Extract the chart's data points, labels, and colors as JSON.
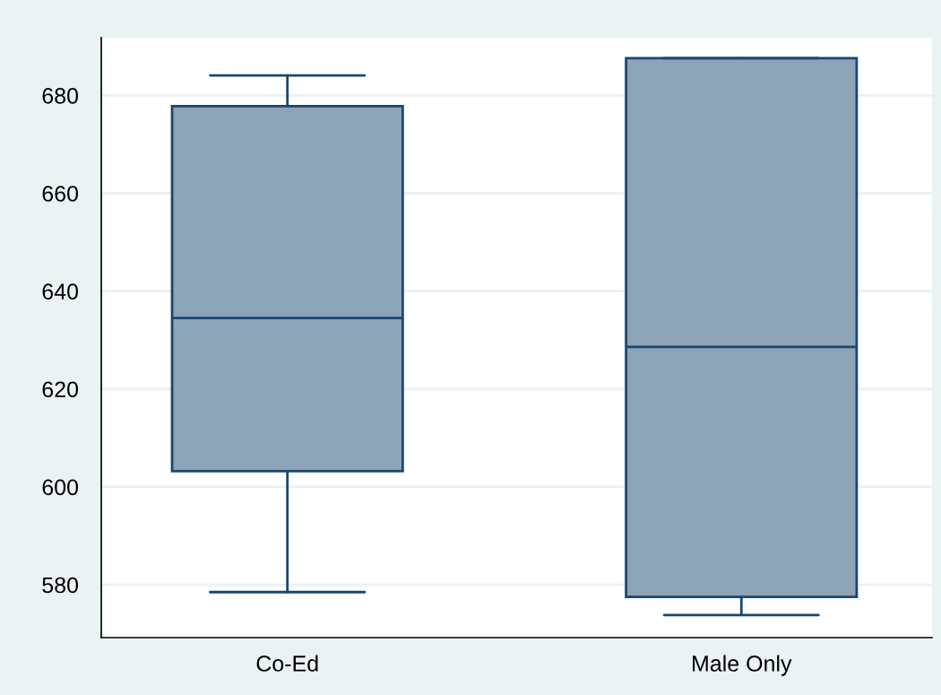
{
  "chart_data": {
    "type": "box",
    "categories": [
      "Co-Ed",
      "Male Only"
    ],
    "series": [
      {
        "color": "#8da3b7",
        "boxes": [
          {
            "low": 578.5,
            "q1": 603.2,
            "median": 634.5,
            "q3": 677.8,
            "high": 684.1
          },
          {
            "low": 573.8,
            "q1": 577.5,
            "median": 628.6,
            "q3": 687.6,
            "high": 687.6
          }
        ]
      }
    ],
    "ylim": [
      569.2,
      691.8
    ],
    "yticks": [
      580,
      600,
      620,
      640,
      660,
      680
    ],
    "grid": "y"
  }
}
